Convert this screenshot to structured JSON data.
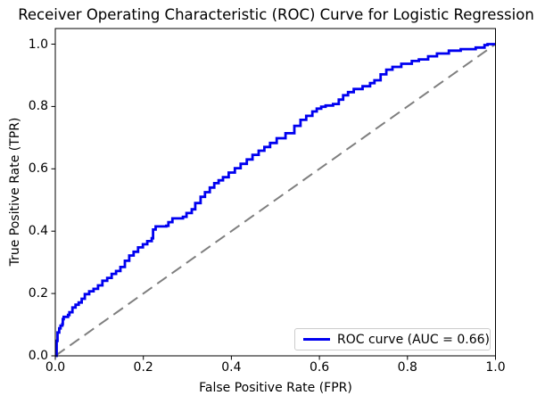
{
  "chart_data": {
    "type": "line",
    "title": "Receiver Operating Characteristic (ROC) Curve for Logistic Regression",
    "xlabel": "False Positive Rate (FPR)",
    "ylabel": "True Positive Rate (TPR)",
    "xlim": [
      0.0,
      1.0
    ],
    "ylim": [
      0.0,
      1.05
    ],
    "xtick_labels": [
      "0.0",
      "0.2",
      "0.4",
      "0.6",
      "0.8",
      "1.0"
    ],
    "ytick_labels": [
      "0.0",
      "0.2",
      "0.4",
      "0.6",
      "0.8",
      "1.0"
    ],
    "grid": false,
    "legend_position": "lower right",
    "auc": 0.66,
    "series": [
      {
        "name": "ROC curve (AUC = 0.66)",
        "style": "step",
        "dash": false,
        "color": "#0000f0",
        "linewidth": 2.8,
        "points": [
          [
            0.0,
            0.0
          ],
          [
            0.003,
            0.01
          ],
          [
            0.003,
            0.048
          ],
          [
            0.005,
            0.06
          ],
          [
            0.005,
            0.075
          ],
          [
            0.009,
            0.088
          ],
          [
            0.012,
            0.097
          ],
          [
            0.016,
            0.102
          ],
          [
            0.017,
            0.118
          ],
          [
            0.019,
            0.125
          ],
          [
            0.029,
            0.131
          ],
          [
            0.032,
            0.14
          ],
          [
            0.039,
            0.155
          ],
          [
            0.046,
            0.164
          ],
          [
            0.053,
            0.171
          ],
          [
            0.06,
            0.183
          ],
          [
            0.067,
            0.198
          ],
          [
            0.077,
            0.207
          ],
          [
            0.087,
            0.215
          ],
          [
            0.097,
            0.226
          ],
          [
            0.107,
            0.241
          ],
          [
            0.118,
            0.25
          ],
          [
            0.128,
            0.263
          ],
          [
            0.138,
            0.272
          ],
          [
            0.148,
            0.285
          ],
          [
            0.158,
            0.305
          ],
          [
            0.168,
            0.322
          ],
          [
            0.178,
            0.334
          ],
          [
            0.188,
            0.348
          ],
          [
            0.199,
            0.358
          ],
          [
            0.209,
            0.368
          ],
          [
            0.219,
            0.377
          ],
          [
            0.222,
            0.405
          ],
          [
            0.228,
            0.415
          ],
          [
            0.252,
            0.417
          ],
          [
            0.257,
            0.429
          ],
          [
            0.266,
            0.441
          ],
          [
            0.29,
            0.446
          ],
          [
            0.298,
            0.458
          ],
          [
            0.31,
            0.47
          ],
          [
            0.318,
            0.49
          ],
          [
            0.33,
            0.51
          ],
          [
            0.34,
            0.525
          ],
          [
            0.351,
            0.54
          ],
          [
            0.361,
            0.554
          ],
          [
            0.371,
            0.563
          ],
          [
            0.381,
            0.573
          ],
          [
            0.394,
            0.588
          ],
          [
            0.408,
            0.602
          ],
          [
            0.421,
            0.616
          ],
          [
            0.435,
            0.63
          ],
          [
            0.448,
            0.645
          ],
          [
            0.462,
            0.658
          ],
          [
            0.475,
            0.67
          ],
          [
            0.488,
            0.683
          ],
          [
            0.503,
            0.698
          ],
          [
            0.523,
            0.714
          ],
          [
            0.543,
            0.738
          ],
          [
            0.557,
            0.757
          ],
          [
            0.57,
            0.77
          ],
          [
            0.584,
            0.784
          ],
          [
            0.594,
            0.793
          ],
          [
            0.604,
            0.799
          ],
          [
            0.614,
            0.803
          ],
          [
            0.631,
            0.808
          ],
          [
            0.644,
            0.822
          ],
          [
            0.654,
            0.836
          ],
          [
            0.665,
            0.846
          ],
          [
            0.678,
            0.856
          ],
          [
            0.698,
            0.865
          ],
          [
            0.715,
            0.875
          ],
          [
            0.725,
            0.884
          ],
          [
            0.739,
            0.903
          ],
          [
            0.752,
            0.918
          ],
          [
            0.766,
            0.927
          ],
          [
            0.786,
            0.937
          ],
          [
            0.81,
            0.946
          ],
          [
            0.826,
            0.951
          ],
          [
            0.847,
            0.961
          ],
          [
            0.867,
            0.97
          ],
          [
            0.894,
            0.979
          ],
          [
            0.921,
            0.984
          ],
          [
            0.955,
            0.989
          ],
          [
            0.975,
            0.997
          ],
          [
            0.982,
            1.0
          ],
          [
            1.0,
            1.0
          ]
        ]
      },
      {
        "name": "chance-diagonal",
        "style": "line",
        "dash": true,
        "color": "#7f7f7f",
        "linewidth": 2,
        "points": [
          [
            0.0,
            0.0
          ],
          [
            1.0,
            1.0
          ]
        ]
      }
    ]
  },
  "legend": {
    "label": "ROC curve (AUC = 0.66)"
  },
  "colors": {
    "roc_curve": "#0000f0",
    "diagonal": "#7f7f7f",
    "axes": "#000000",
    "legend_border": "#cccccc"
  }
}
